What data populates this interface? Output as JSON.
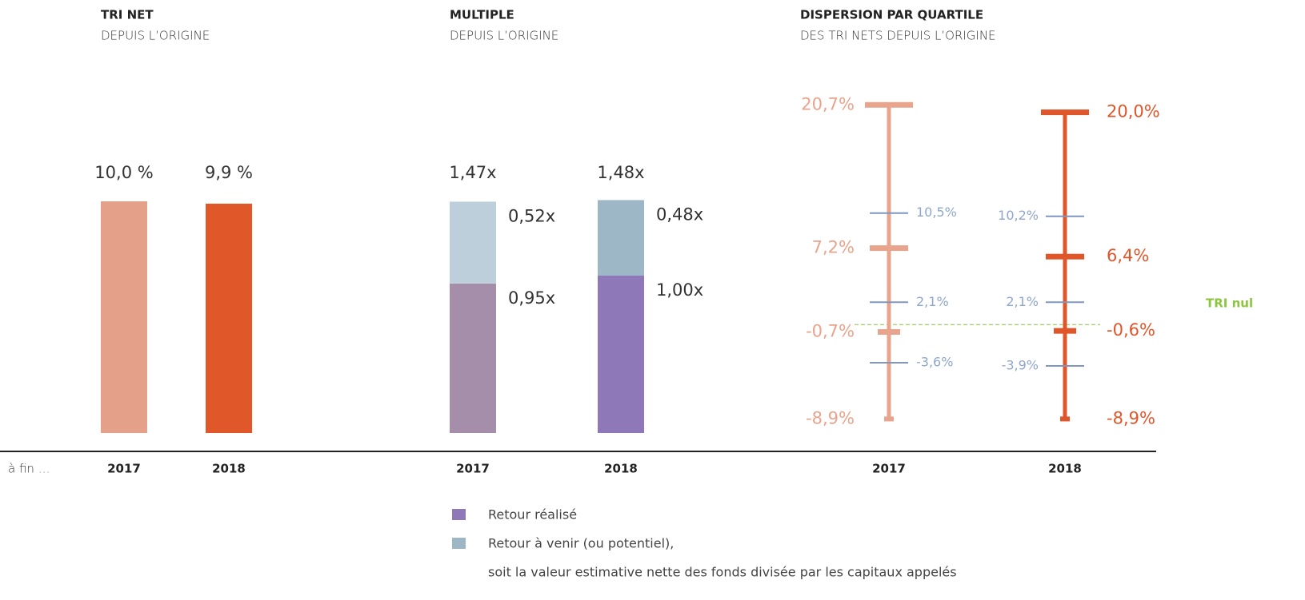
{
  "x_label": "à fin …",
  "chart_data": [
    {
      "type": "bar",
      "title": "TRI NET",
      "subtitle": "DEPUIS L’ORIGINE",
      "categories": [
        "2017",
        "2018"
      ],
      "values": [
        10.0,
        9.9
      ],
      "value_labels": [
        "10,0 %",
        "9,9 %"
      ],
      "colors": [
        "#e5a08a",
        "#e0572a"
      ],
      "ylim": [
        0,
        10
      ]
    },
    {
      "type": "stacked_bar",
      "title": "MULTIPLE",
      "subtitle": "DEPUIS L’ORIGINE",
      "categories": [
        "2017",
        "2018"
      ],
      "series": [
        {
          "name": "Retour réalisé",
          "color": "#8e78b8",
          "colors": [
            "#a58eaa",
            "#8e78b8"
          ],
          "values": [
            0.95,
            1.0
          ],
          "value_labels": [
            "0,95x",
            "1,00x"
          ]
        },
        {
          "name": "Retour à venir (ou potentiel),",
          "description": "soit la valeur estimative nette des fonds divisée par les capitaux appelés",
          "color": "#9db7c6",
          "colors": [
            "#bccfdb",
            "#9db7c6"
          ],
          "values": [
            0.52,
            0.48
          ],
          "value_labels": [
            "0,52x",
            "0,48x"
          ]
        }
      ],
      "totals": [
        1.47,
        1.48
      ],
      "total_labels": [
        "1,47x",
        "1,48x"
      ],
      "ylim": [
        0,
        1.5
      ]
    },
    {
      "type": "dispersion",
      "title": "DISPERSION PAR QUARTILE",
      "subtitle": "DES TRI NETS DEPUIS L’ORIGINE",
      "categories": [
        "2017",
        "2018"
      ],
      "groups": [
        {
          "color": "#e8a48c",
          "bounds": [
            20.7,
            7.2,
            -0.7,
            -8.9
          ],
          "bound_labels": [
            "20,7%",
            "7,2%",
            "-0,7%",
            "-8,9%"
          ],
          "quartiles": [
            10.5,
            2.1,
            -3.6
          ],
          "quartile_labels": [
            "10,5%",
            "2,1%",
            "-3,6%"
          ]
        },
        {
          "color": "#e0562b",
          "bounds": [
            20.0,
            6.4,
            -0.6,
            -8.9
          ],
          "bound_labels": [
            "20,0%",
            "6,4%",
            "-0,6%",
            "-8,9%"
          ],
          "quartiles": [
            10.2,
            2.1,
            -3.9
          ],
          "quartile_labels": [
            "10,2%",
            "2,1%",
            "-3,9%"
          ]
        }
      ],
      "quartile_color": "#7f97c0",
      "quartile_label_color": "#8fa7cc",
      "reference": {
        "value": 0,
        "label": "TRI nul",
        "color": "#8cc63f"
      },
      "ylim": [
        -10,
        22
      ]
    }
  ]
}
